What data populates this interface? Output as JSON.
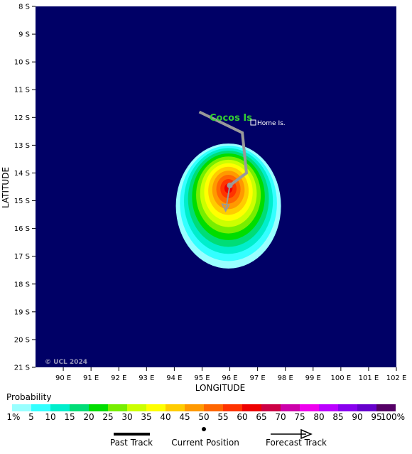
{
  "map": {
    "xlabel": "LONGITUDE",
    "ylabel": "LATITUDE",
    "lon_ticks": [
      "90 E",
      "91 E",
      "92 E",
      "93 E",
      "94 E",
      "95 E",
      "96 E",
      "97 E",
      "98 E",
      "99 E",
      "100 E",
      "101 E",
      "102 E"
    ],
    "lat_ticks": [
      "8 S",
      "9 S",
      "10 S",
      "11 S",
      "12 S",
      "13 S",
      "14 S",
      "15 S",
      "16 S",
      "17 S",
      "18 S",
      "19 S",
      "20 S",
      "21 S"
    ],
    "lon_range": [
      89.0,
      102.0
    ],
    "lat_range": [
      -8.0,
      -21.0
    ],
    "ocean_color": "#000066",
    "place_label": "Cocos Is",
    "place_label_color": "#33cc33",
    "place_marker_label": "Home Is.",
    "copyright": "© UCL 2024",
    "past_track": [
      [
        94.9,
        -11.8
      ],
      [
        96.45,
        -12.55
      ],
      [
        96.6,
        -14.0
      ],
      [
        96.0,
        -14.45
      ]
    ],
    "current_position": [
      96.0,
      -14.45
    ],
    "forecast_track": [
      [
        96.0,
        -14.45
      ],
      [
        95.85,
        -15.35
      ]
    ]
  },
  "legend": {
    "title": "Probability",
    "ticks": [
      "1%",
      "5",
      "10",
      "15",
      "20",
      "25",
      "30",
      "35",
      "40",
      "45",
      "50",
      "55",
      "60",
      "65",
      "70",
      "75",
      "80",
      "85",
      "90",
      "95",
      "100%"
    ],
    "colors": [
      "#99ffff",
      "#33ffff",
      "#00eecc",
      "#00dd77",
      "#00dd00",
      "#77ee00",
      "#ccff00",
      "#ffff00",
      "#ffcc00",
      "#ff9900",
      "#ff6600",
      "#ff3300",
      "#ee0000",
      "#cc0044",
      "#cc00aa",
      "#ee00ee",
      "#bb00ff",
      "#8800ee",
      "#6600cc",
      "#550066"
    ],
    "past_track_label": "Past Track",
    "current_position_label": "Current Position",
    "forecast_track_label": "Forecast Track"
  }
}
